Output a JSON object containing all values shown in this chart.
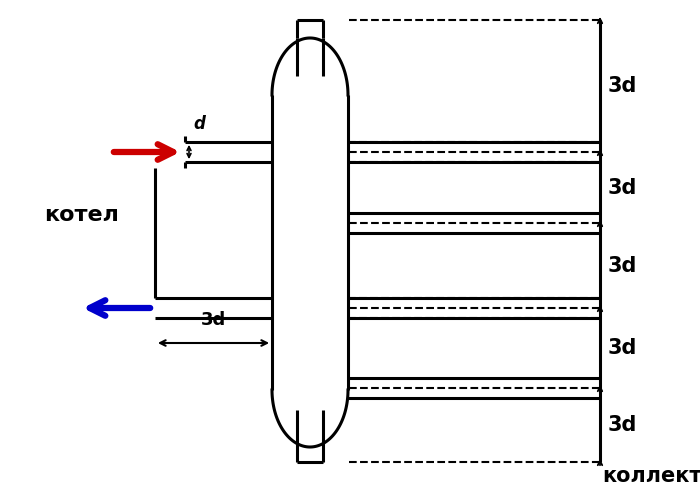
{
  "bg_color": "#ffffff",
  "line_color": "#000000",
  "red_arrow_color": "#cc0000",
  "blue_arrow_color": "#0000cc",
  "label_kotel": "котел",
  "label_kollektora": "коллектора",
  "label_d": "d",
  "label_3d_horiz": "3d",
  "label_3d_vert": "3d",
  "figsize": [
    7.0,
    4.96
  ],
  "dpi": 100
}
